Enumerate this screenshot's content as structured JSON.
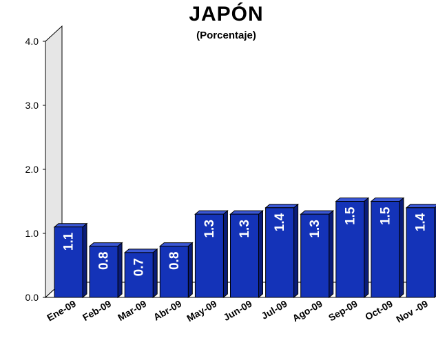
{
  "chart_data": {
    "type": "bar",
    "title": "JAPÓN",
    "subtitle": "(Porcentaje)",
    "categories": [
      "Ene-09",
      "Feb-09",
      "Mar-09",
      "Abr-09",
      "May-09",
      "Jun-09",
      "Jul-09",
      "Ago-09",
      "Sep-09",
      "Oct-09",
      "Nov -09"
    ],
    "values": [
      1.1,
      0.8,
      0.7,
      0.8,
      1.3,
      1.3,
      1.4,
      1.3,
      1.5,
      1.5,
      1.4
    ],
    "data_labels": [
      "1.1",
      "0.8",
      "0.7",
      "0.8",
      "1.3",
      "1.3",
      "1.4",
      "1.3",
      "1.5",
      "1.5",
      "1.4"
    ],
    "yticks": [
      "0.0",
      "1.0",
      "2.0",
      "3.0",
      "4.0"
    ],
    "ylim": [
      0,
      4
    ],
    "grid": false,
    "legend": "none",
    "colors": {
      "bar": "#1433b8",
      "bar_top": "#3a57d6",
      "bar_side": "#0a1c78",
      "bar_outline": "#000000",
      "wall": "#e6e6e6",
      "label": "#ffffff"
    }
  }
}
